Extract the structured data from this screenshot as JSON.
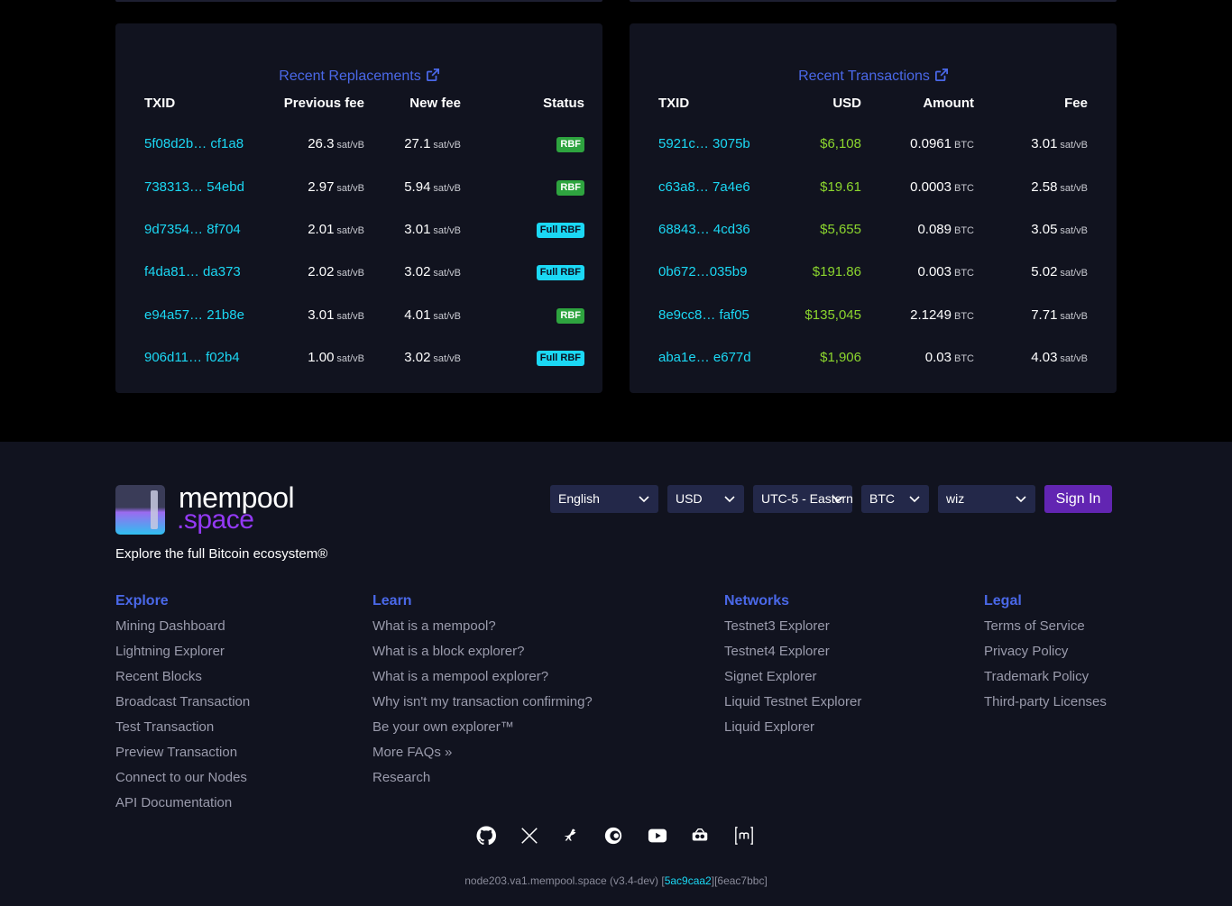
{
  "replacements": {
    "title": "Recent Replacements",
    "headers": {
      "txid": "TXID",
      "prev_fee": "Previous fee",
      "new_fee": "New fee",
      "status": "Status"
    },
    "unit": "sat/vB",
    "rows": [
      {
        "txid": "5f08d2b… cf1a8",
        "prev": "26.3",
        "new": "27.1",
        "status": "RBF"
      },
      {
        "txid": "738313… 54ebd",
        "prev": "2.97",
        "new": "5.94",
        "status": "RBF"
      },
      {
        "txid": "9d7354… 8f704",
        "prev": "2.01",
        "new": "3.01",
        "status": "Full RBF"
      },
      {
        "txid": "f4da81… da373",
        "prev": "2.02",
        "new": "3.02",
        "status": "Full RBF"
      },
      {
        "txid": "e94a57… 21b8e",
        "prev": "3.01",
        "new": "4.01",
        "status": "RBF"
      },
      {
        "txid": "906d11… f02b4",
        "prev": "1.00",
        "new": "3.02",
        "status": "Full RBF"
      }
    ]
  },
  "transactions": {
    "title": "Recent Transactions",
    "headers": {
      "txid": "TXID",
      "usd": "USD",
      "amount": "Amount",
      "fee": "Fee"
    },
    "btc_unit": "BTC",
    "fee_unit": "sat/vB",
    "rows": [
      {
        "txid": "5921c… 3075b",
        "usd": "$6,108",
        "amount": "0.0961",
        "fee": "3.01"
      },
      {
        "txid": "c63a8… 7a4e6",
        "usd": "$19.61",
        "amount": "0.0003",
        "fee": "2.58"
      },
      {
        "txid": "68843… 4cd36",
        "usd": "$5,655",
        "amount": "0.089",
        "fee": "3.05"
      },
      {
        "txid": "0b672…035b9",
        "usd": "$191.86",
        "amount": "0.003",
        "fee": "5.02"
      },
      {
        "txid": "8e9cc8… faf05",
        "usd": "$135,045",
        "amount": "2.1249",
        "fee": "7.71"
      },
      {
        "txid": "aba1e… e677d",
        "usd": "$1,906",
        "amount": "0.03",
        "fee": "4.03"
      }
    ]
  },
  "footer": {
    "logo_line1": "mempool",
    "logo_line2": ".space",
    "tagline": "Explore the full Bitcoin ecosystem®",
    "selectors": {
      "language": "English",
      "currency": "USD",
      "timezone": "UTC-5 - Eastern",
      "unit": "BTC",
      "theme": "wiz"
    },
    "sign_in": "Sign In",
    "columns": {
      "explore": {
        "title": "Explore",
        "links": [
          "Mining Dashboard",
          "Lightning Explorer",
          "Recent Blocks",
          "Broadcast Transaction",
          "Test Transaction",
          "Preview Transaction",
          "Connect to our Nodes",
          "API Documentation"
        ]
      },
      "learn": {
        "title": "Learn",
        "links": [
          "What is a mempool?",
          "What is a block explorer?",
          "What is a mempool explorer?",
          "Why isn't my transaction confirming?",
          "Be your own explorer™",
          "More FAQs »",
          "Research"
        ]
      },
      "networks": {
        "title": "Networks",
        "links": [
          "Testnet3 Explorer",
          "Testnet4 Explorer",
          "Signet Explorer",
          "Liquid Testnet Explorer",
          "Liquid Explorer"
        ]
      },
      "legal": {
        "title": "Legal",
        "links": [
          "Terms of Service",
          "Privacy Policy",
          "Trademark Policy",
          "Third-party Licenses"
        ]
      }
    },
    "version_prefix": "node203.va1.mempool.space (v3.4-dev) [",
    "version_hash": "5ac9caa2",
    "version_suffix": "][6eac7bbc]",
    "social_icons": [
      "github-icon",
      "x-icon",
      "nostr-icon",
      "youtube-icon",
      "bluesky-icon",
      "telegram-icon",
      "matrix-icon"
    ]
  },
  "colors": {
    "background": "#000000",
    "card": "#11131f",
    "accent_blue": "#4a68e8",
    "txid_cyan": "#1bd8f4",
    "usd_green": "#3bcc49",
    "rbf_green": "#2ea43f",
    "signin_purple": "#6225b2"
  }
}
